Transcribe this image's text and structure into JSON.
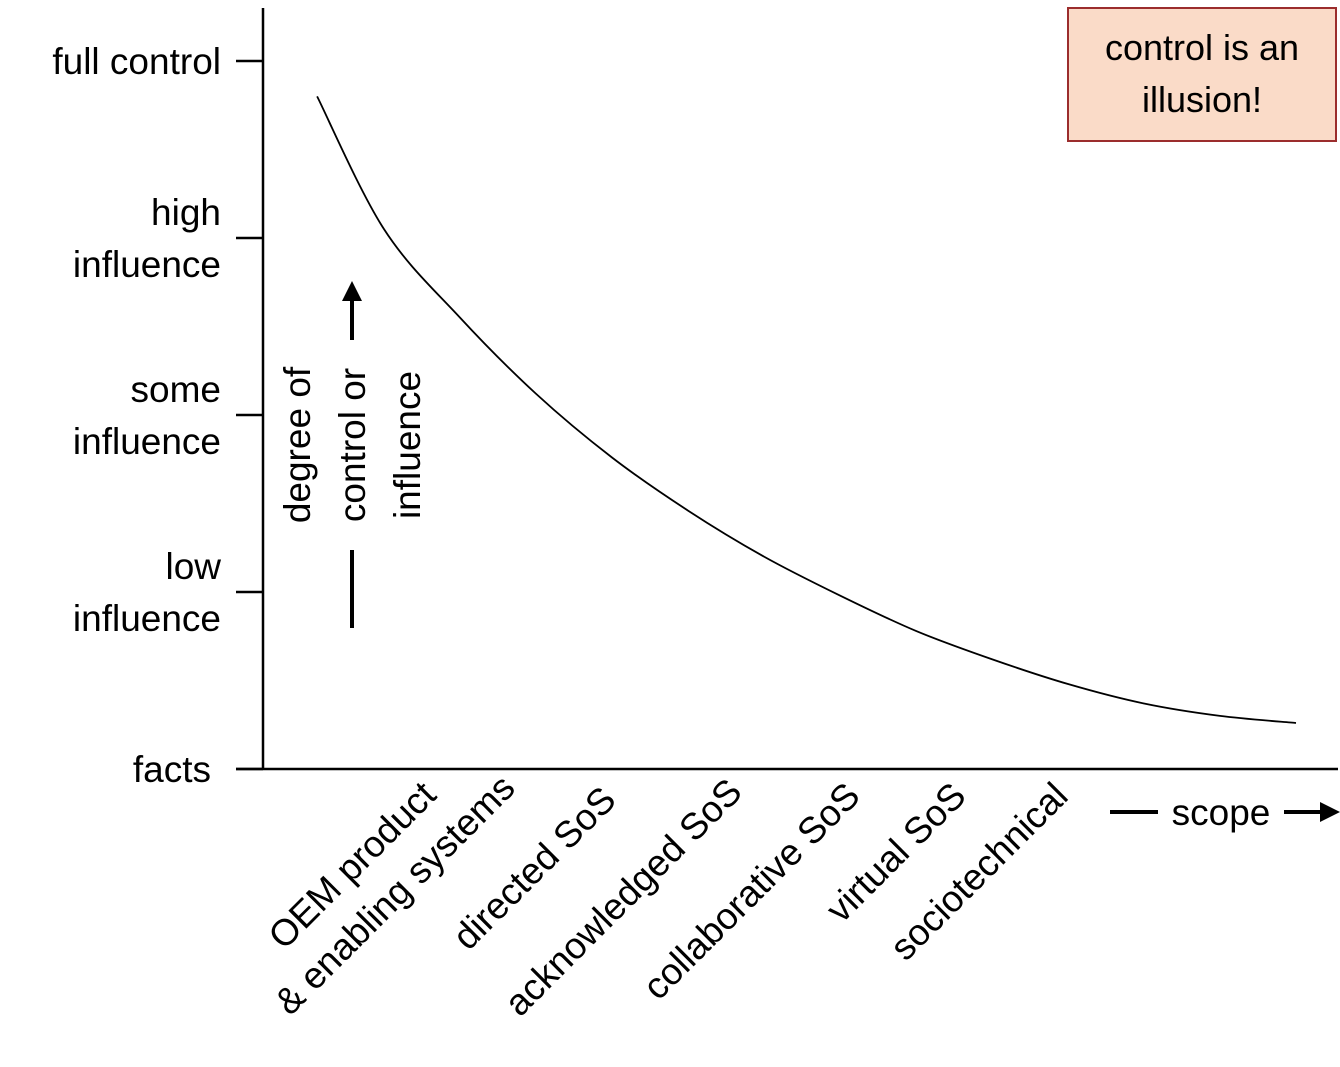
{
  "chart_data": {
    "type": "line",
    "title": "",
    "yaxis": {
      "levels": [
        {
          "value": 0,
          "label": [
            "facts"
          ]
        },
        {
          "value": 1,
          "label": [
            "low",
            "influence"
          ]
        },
        {
          "value": 2,
          "label": [
            "some",
            "influence"
          ]
        },
        {
          "value": 3,
          "label": [
            "high",
            "influence"
          ]
        },
        {
          "value": 4,
          "label": [
            "full control"
          ]
        }
      ],
      "ylim": [
        0,
        4.3
      ],
      "label_lines": [
        "degree of",
        "control or",
        "influence"
      ],
      "direction": "up"
    },
    "xaxis": {
      "categories": [
        [
          "OEM product",
          "& enabling systems"
        ],
        [
          "directed SoS"
        ],
        [
          "acknowledged SoS"
        ],
        [
          "collaborative SoS"
        ],
        [
          "virtual SoS"
        ],
        [
          "sociotechnical"
        ]
      ],
      "label": "scope",
      "direction": "right",
      "tick_rotation": -45
    },
    "series": [
      {
        "x": [
          0.06,
          0.5,
          1.0,
          1.5,
          2.0,
          2.5,
          3.0,
          3.5,
          4.0,
          4.5,
          5.0,
          5.5,
          6.0,
          6.5
        ],
        "y": [
          3.8,
          3.05,
          2.55,
          2.12,
          1.76,
          1.46,
          1.2,
          0.98,
          0.78,
          0.62,
          0.48,
          0.37,
          0.3,
          0.26
        ],
        "color": "#000000"
      }
    ],
    "annotations": [
      {
        "lines": [
          "control is an",
          "illusion!"
        ],
        "placement": "top-right",
        "fill": "#fadbc8",
        "border": "#9b2d2d"
      }
    ],
    "grid": false,
    "legend": "none"
  }
}
